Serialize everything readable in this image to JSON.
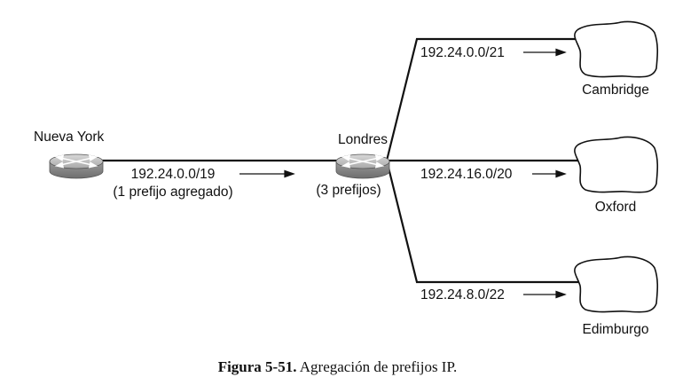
{
  "nodes": {
    "new_york": {
      "label": "Nueva York"
    },
    "london": {
      "label": "Londres",
      "note": "(3 prefijos)"
    },
    "cambridge": {
      "label": "Cambridge"
    },
    "oxford": {
      "label": "Oxford"
    },
    "edinburgh": {
      "label": "Edimburgo"
    }
  },
  "links": {
    "ny_london": {
      "prefix": "192.24.0.0/19",
      "note": "(1 prefijo agregado)"
    },
    "cambridge": {
      "prefix": "192.24.0.0/21"
    },
    "oxford": {
      "prefix": "192.24.16.0/20"
    },
    "edinburgh": {
      "prefix": "192.24.8.0/22"
    }
  },
  "caption": {
    "number": "Figura 5-51.",
    "text": "Agregación de prefijos IP."
  },
  "colors": {
    "line": "#111111",
    "router": "#8a8a8a"
  },
  "icons": {
    "router": "router-icon",
    "cloud": "cloud-icon"
  }
}
